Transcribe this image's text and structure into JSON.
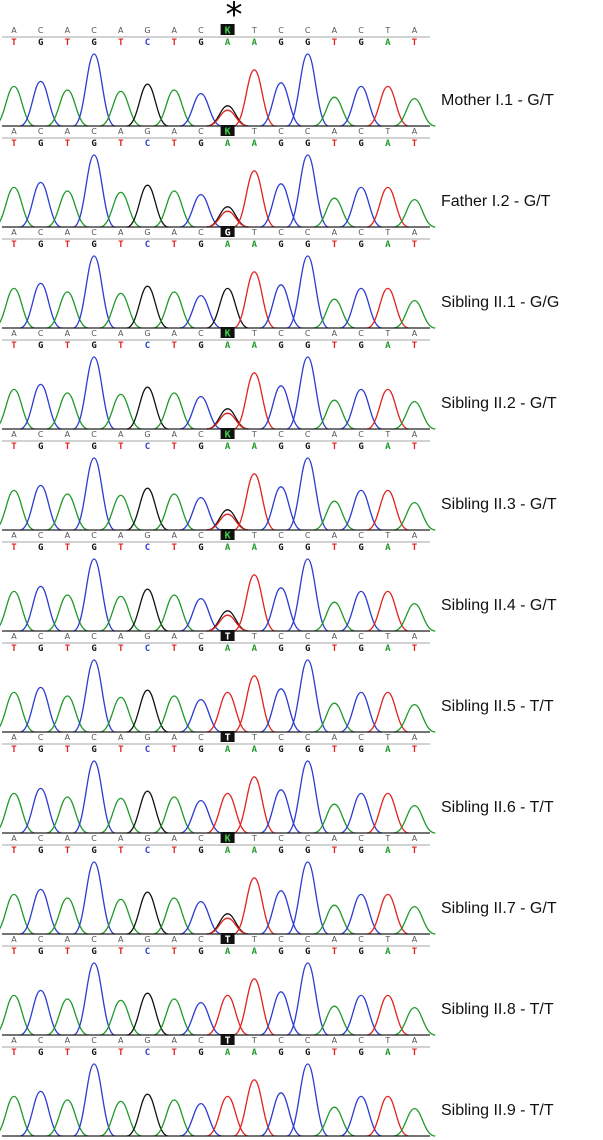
{
  "figure": {
    "marker": "*",
    "colors": {
      "A": "#1f9a2a",
      "C": "#2c3cd0",
      "G": "#111111",
      "T": "#e0231f",
      "variant_het_bg": "#111111",
      "variant_het_fg": "#3fd24a",
      "variant_hom_fg": "#ffffff",
      "baseline": "#222222"
    },
    "reference_sequence": [
      "A",
      "C",
      "A",
      "C",
      "A",
      "G",
      "A",
      "C",
      "*",
      "T",
      "C",
      "C",
      "A",
      "C",
      "T",
      "A"
    ],
    "complement_sequence": [
      "T",
      "G",
      "T",
      "G",
      "T",
      "C",
      "T",
      "G",
      "*",
      "A",
      "G",
      "G",
      "T",
      "G",
      "A",
      "T"
    ],
    "panels": [
      {
        "label": "Mother I.1 - G/T",
        "variant_call": "K",
        "genotype": "G/T"
      },
      {
        "label": "Father I.2 - G/T",
        "variant_call": "K",
        "genotype": "G/T"
      },
      {
        "label": "Sibling II.1 - G/G",
        "variant_call": "G",
        "genotype": "G/G"
      },
      {
        "label": "Sibling II.2 - G/T",
        "variant_call": "K",
        "genotype": "G/T"
      },
      {
        "label": "Sibling II.3 - G/T",
        "variant_call": "K",
        "genotype": "G/T"
      },
      {
        "label": "Sibling II.4 - G/T",
        "variant_call": "K",
        "genotype": "G/T"
      },
      {
        "label": "Sibling II.5 - T/T",
        "variant_call": "T",
        "genotype": "T/T"
      },
      {
        "label": "Sibling II.6 - T/T",
        "variant_call": "T",
        "genotype": "T/T"
      },
      {
        "label": "Sibling II.7 - G/T",
        "variant_call": "K",
        "genotype": "G/T"
      },
      {
        "label": "Sibling II.8 - T/T",
        "variant_call": "T",
        "genotype": "T/T"
      },
      {
        "label": "Sibling II.9 - T/T",
        "variant_call": "T",
        "genotype": "T/T"
      }
    ]
  }
}
